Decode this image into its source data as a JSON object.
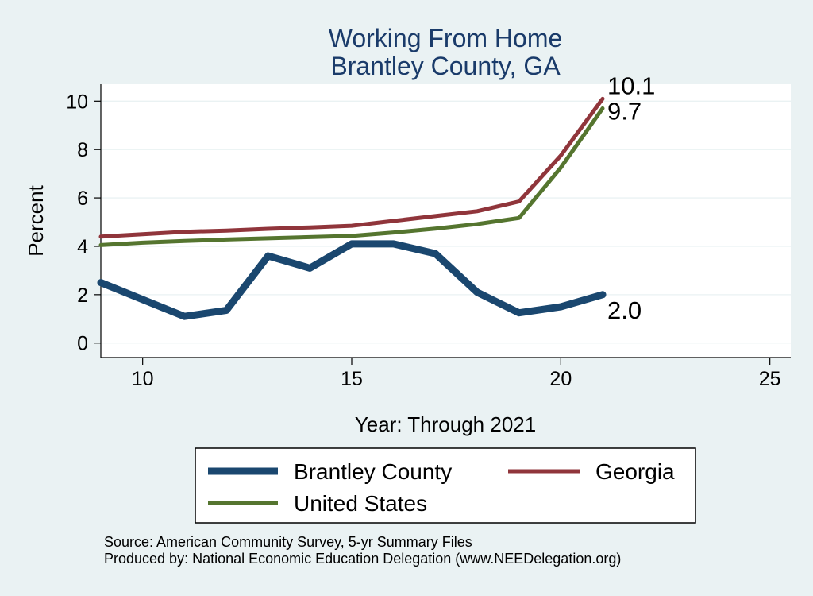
{
  "chart_data": {
    "type": "line",
    "title_lines": [
      "Working From Home",
      "Brantley County, GA"
    ],
    "xlabel": "Year: Through 2021",
    "ylabel": "Percent",
    "xlim": [
      9,
      25.5
    ],
    "ylim": [
      -0.6,
      10.7
    ],
    "xticks": [
      10,
      15,
      20,
      25
    ],
    "yticks": [
      0,
      2,
      4,
      6,
      8,
      10
    ],
    "grid": true,
    "legend_position": "bottom",
    "x": [
      9,
      10,
      11,
      12,
      13,
      14,
      15,
      16,
      17,
      18,
      19,
      20,
      21
    ],
    "series": [
      {
        "name": "Brantley County",
        "color": "#1a476f",
        "end_label": "2.0",
        "values": [
          2.5,
          1.8,
          1.1,
          1.35,
          3.6,
          3.1,
          4.1,
          4.1,
          3.7,
          2.1,
          1.25,
          1.5,
          2.0
        ]
      },
      {
        "name": "Georgia",
        "color": "#90353b",
        "end_label": "10.1",
        "values": [
          4.4,
          4.5,
          4.6,
          4.65,
          4.72,
          4.78,
          4.85,
          5.05,
          5.25,
          5.45,
          5.85,
          7.75,
          10.1
        ]
      },
      {
        "name": "United States",
        "color": "#55752f",
        "end_label": "9.7",
        "values": [
          4.05,
          4.15,
          4.22,
          4.28,
          4.33,
          4.38,
          4.43,
          4.57,
          4.73,
          4.92,
          5.17,
          7.25,
          9.7
        ]
      }
    ]
  },
  "notes": {
    "source": "Source: American Community Survey, 5-yr Summary Files",
    "produced_by": "Produced by: National Economic Education Delegation (www.NEEDelegation.org)"
  }
}
